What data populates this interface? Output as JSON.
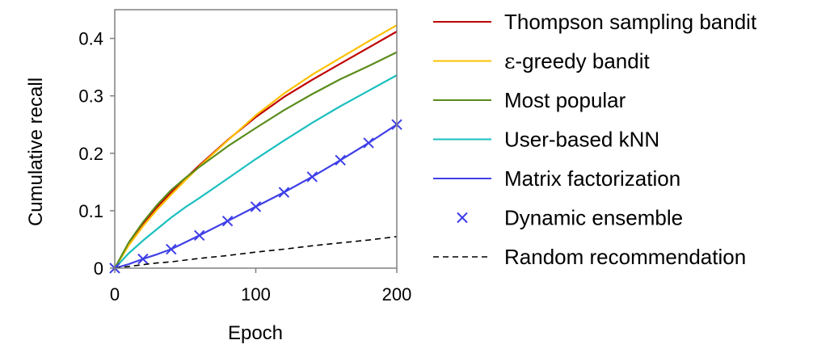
{
  "chart_data": {
    "type": "line",
    "xlabel": "Epoch",
    "ylabel": "Cumulative recall",
    "xlim": [
      0,
      200
    ],
    "ylim": [
      0,
      0.45
    ],
    "xticks": [
      "0",
      "100",
      "200"
    ],
    "yticks": [
      "0",
      "0.1",
      "0.2",
      "0.3",
      "0.4"
    ],
    "grid": false,
    "legend_position": "right",
    "x": [
      0,
      10,
      20,
      30,
      40,
      50,
      60,
      80,
      100,
      120,
      140,
      160,
      180,
      200
    ],
    "series": [
      {
        "name": "Thompson sampling bandit",
        "color": "#c00000",
        "style": "solid",
        "values": [
          0,
          0.042,
          0.076,
          0.106,
          0.132,
          0.156,
          0.179,
          0.223,
          0.263,
          0.298,
          0.328,
          0.356,
          0.384,
          0.412
        ]
      },
      {
        "name": "ε-greedy bandit",
        "label_prefix": "ε",
        "label_rest": "-greedy bandit",
        "color": "#ffc000",
        "style": "solid",
        "values": [
          0,
          0.04,
          0.073,
          0.102,
          0.128,
          0.153,
          0.177,
          0.222,
          0.266,
          0.304,
          0.337,
          0.366,
          0.395,
          0.423
        ]
      },
      {
        "name": "Most popular",
        "color": "#5b8c1c",
        "style": "solid",
        "values": [
          0,
          0.045,
          0.08,
          0.11,
          0.136,
          0.157,
          0.176,
          0.212,
          0.244,
          0.275,
          0.303,
          0.329,
          0.352,
          0.376
        ]
      },
      {
        "name": "User-based kNN",
        "color": "#1bbfbf",
        "style": "solid",
        "values": [
          0,
          0.026,
          0.048,
          0.068,
          0.088,
          0.106,
          0.122,
          0.156,
          0.19,
          0.222,
          0.253,
          0.282,
          0.309,
          0.336
        ]
      },
      {
        "name": "Matrix factorization",
        "color": "#3f3fe8",
        "style": "solid",
        "values": [
          0,
          0.007,
          0.016,
          0.024,
          0.033,
          0.045,
          0.057,
          0.082,
          0.107,
          0.132,
          0.159,
          0.188,
          0.218,
          0.25
        ]
      },
      {
        "name": "Dynamic ensemble",
        "color": "#3f3fe8",
        "style": "marker",
        "marker": "x",
        "x": [
          0,
          20,
          40,
          60,
          80,
          100,
          120,
          140,
          160,
          180,
          200
        ],
        "values": [
          0,
          0.016,
          0.033,
          0.057,
          0.082,
          0.107,
          0.132,
          0.159,
          0.188,
          0.218,
          0.25
        ]
      },
      {
        "name": "Random recommendation",
        "color": "#000000",
        "style": "dashed",
        "values": [
          0,
          0.003,
          0.006,
          0.009,
          0.011,
          0.014,
          0.017,
          0.022,
          0.028,
          0.033,
          0.039,
          0.044,
          0.049,
          0.055
        ]
      }
    ]
  }
}
